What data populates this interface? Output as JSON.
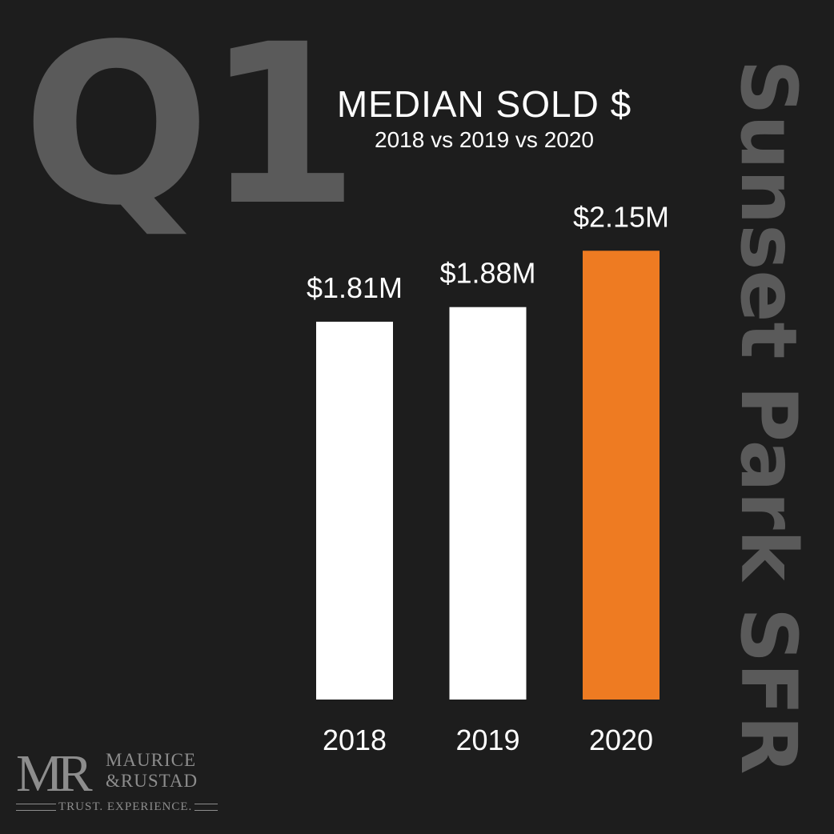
{
  "quarter_label": "Q1",
  "side_title": "Sunset Park SFR",
  "chart_data": {
    "type": "bar",
    "title": "MEDIAN SOLD $",
    "subtitle": "2018 vs 2019 vs 2020",
    "categories": [
      "2018",
      "2019",
      "2020"
    ],
    "values": [
      1.81,
      1.88,
      2.15
    ],
    "data_labels": [
      "$1.81M",
      "$1.88M",
      "$2.15M"
    ],
    "unit": "$M",
    "ylim": [
      0,
      2.3
    ],
    "grid": false,
    "legend": "none",
    "colors": [
      "#ffffff",
      "#ffffff",
      "#ee7b22"
    ]
  },
  "logo": {
    "mark": "MR",
    "name_line1": "MAURICE",
    "name_line2": "&RUSTAD",
    "tagline": "TRUST. EXPERIENCE."
  },
  "colors": {
    "background": "#1d1d1d",
    "watermark_text": "#5a5a5a",
    "bar_default": "#ffffff",
    "bar_highlight": "#ee7b22",
    "logo": "#8d8d8d"
  }
}
